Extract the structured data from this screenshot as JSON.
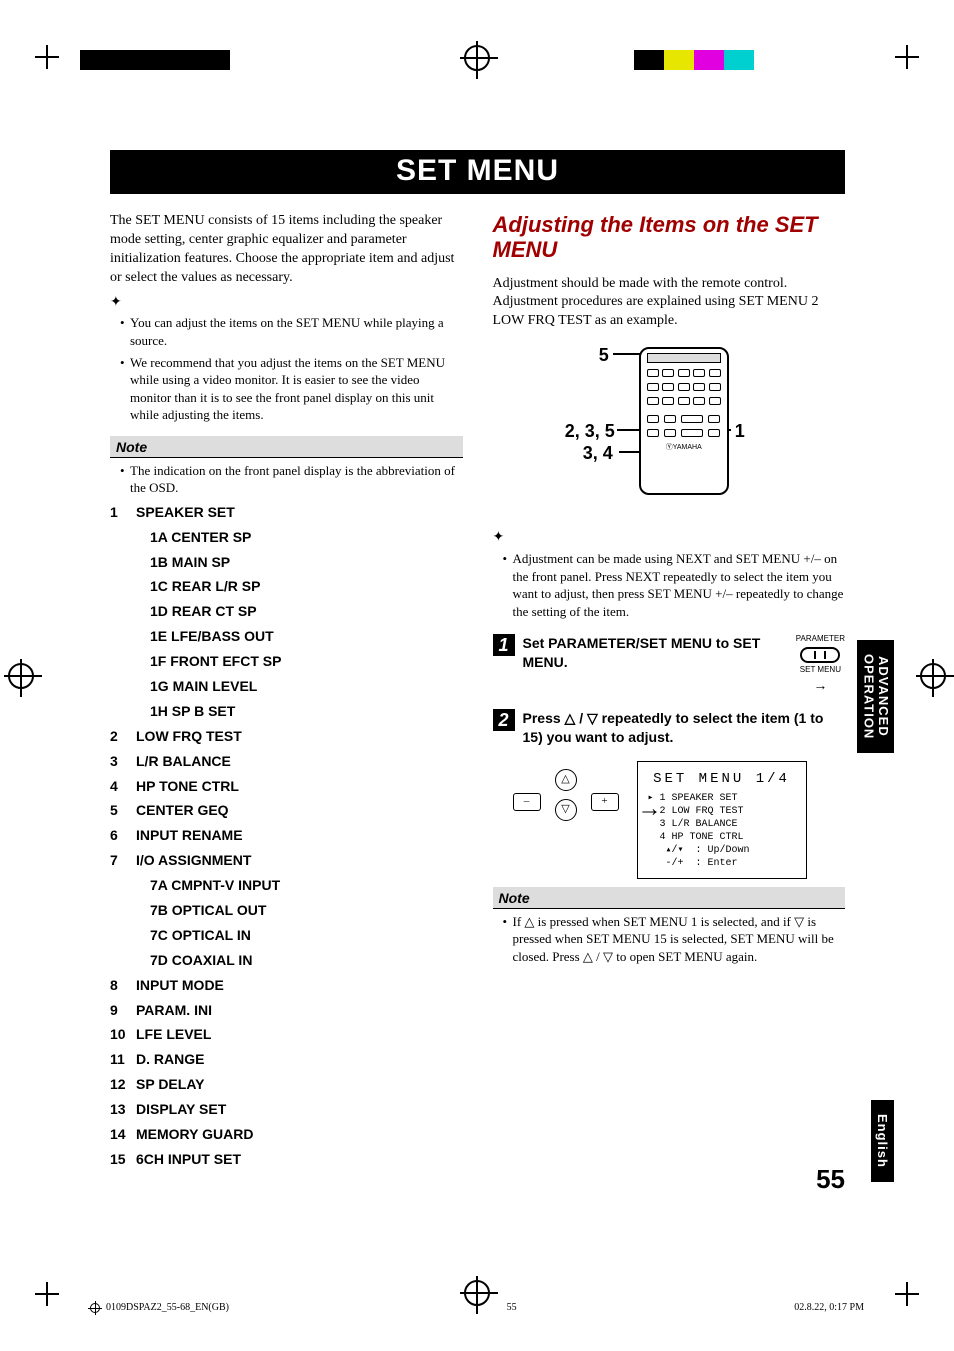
{
  "banner_title": "SET MENU",
  "intro_paragraph": "The SET MENU consists of 15 items including the speaker mode setting, center graphic equalizer and parameter initialization features. Choose the appropriate item and adjust or select the values as necessary.",
  "left_tips": [
    "You can adjust the items on the SET MENU while playing a source.",
    "We recommend that you adjust the items on the SET MENU while using a video monitor. It is easier to see the video monitor than it is to see the front panel display on this unit while adjusting the items."
  ],
  "note_label": "Note",
  "left_note_bullet": "The indication on the front panel display is the abbreviation of the OSD.",
  "menu_items": [
    {
      "num": "1",
      "label": "SPEAKER SET",
      "sub": [
        {
          "key": "1A",
          "label": "CENTER SP"
        },
        {
          "key": "1B",
          "label": "MAIN SP"
        },
        {
          "key": "1C",
          "label": "REAR L/R SP"
        },
        {
          "key": "1D",
          "label": "REAR CT SP"
        },
        {
          "key": "1E",
          "label": "LFE/BASS OUT"
        },
        {
          "key": "1F",
          "label": "FRONT EFCT SP"
        },
        {
          "key": "1G",
          "label": "MAIN LEVEL"
        },
        {
          "key": "1H",
          "label": "SP B SET"
        }
      ]
    },
    {
      "num": "2",
      "label": "LOW FRQ TEST"
    },
    {
      "num": "3",
      "label": "L/R BALANCE"
    },
    {
      "num": "4",
      "label": "HP TONE CTRL"
    },
    {
      "num": "5",
      "label": "CENTER GEQ"
    },
    {
      "num": "6",
      "label": "INPUT RENAME"
    },
    {
      "num": "7",
      "label": "I/O ASSIGNMENT",
      "sub": [
        {
          "key": "7A",
          "label": "CMPNT-V INPUT"
        },
        {
          "key": "7B",
          "label": "OPTICAL OUT"
        },
        {
          "key": "7C",
          "label": "OPTICAL IN"
        },
        {
          "key": "7D",
          "label": "COAXIAL IN"
        }
      ]
    },
    {
      "num": "8",
      "label": "INPUT MODE"
    },
    {
      "num": "9",
      "label": "PARAM. INI"
    },
    {
      "num": "10",
      "label": "LFE LEVEL"
    },
    {
      "num": "11",
      "label": "D. RANGE"
    },
    {
      "num": "12",
      "label": "SP DELAY"
    },
    {
      "num": "13",
      "label": "DISPLAY SET"
    },
    {
      "num": "14",
      "label": "MEMORY GUARD"
    },
    {
      "num": "15",
      "label": "6CH INPUT SET"
    }
  ],
  "right_heading": "Adjusting the Items on the SET MENU",
  "right_intro": "Adjustment should be made with the remote control. Adjustment procedures are explained using SET MENU 2 LOW FRQ TEST as an example.",
  "remote_callouts": {
    "c5": "5",
    "c235": "2, 3, 5",
    "c34": "3, 4",
    "c1": "1"
  },
  "right_tip_bullet": "Adjustment can be made using NEXT and SET MENU +/– on the front panel. Press NEXT repeatedly to select the item you want to adjust, then press SET MENU +/– repeatedly to change the setting of the item.",
  "step1_text": "Set PARAMETER/SET MENU to SET MENU.",
  "switch_top": "PARAMETER",
  "switch_bottom": "SET MENU",
  "step2_text_a": "Press ",
  "step2_text_b": " / ",
  "step2_text_c": " repeatedly to select the item (1 to 15) you want to adjust.",
  "osd": {
    "title": "SET MENU 1/4",
    "rows": [
      "1 SPEAKER SET",
      "2 LOW FRQ TEST",
      "3 L/R BALANCE",
      "4 HP TONE CTRL",
      " ▴/▾  : Up/Down",
      " -/+  : Enter"
    ],
    "marker_row": 0,
    "marker": "▸"
  },
  "right_note_text_a": "If ",
  "right_note_text_b": " is pressed when SET MENU 1 is selected, and if ",
  "right_note_text_c": " is pressed when SET MENU 15 is selected, SET MENU will be closed. Press ",
  "right_note_text_d": " / ",
  "right_note_text_e": " to open SET MENU again.",
  "tri_up": "△",
  "tri_down": "▽",
  "side_tab_advanced_l1": "ADVANCED",
  "side_tab_advanced_l2": "OPERATION",
  "side_tab_english": "English",
  "page_number": "55",
  "footer_left": "0109DSPAZ2_55-68_EN(GB)",
  "footer_mid": "55",
  "footer_right": "02.8.22, 0:17 PM",
  "colorbar_left": [
    "#000",
    "#000",
    "#000",
    "#000",
    "#000",
    "#fff",
    "#fff",
    "#fff"
  ],
  "colorbar_right": [
    "#000",
    "#e6e600",
    "#e000e0",
    "#00d0d0",
    "#fff",
    "#fff",
    "#fff",
    "#fff"
  ],
  "remote_brand": "ⓎYAMAHA"
}
